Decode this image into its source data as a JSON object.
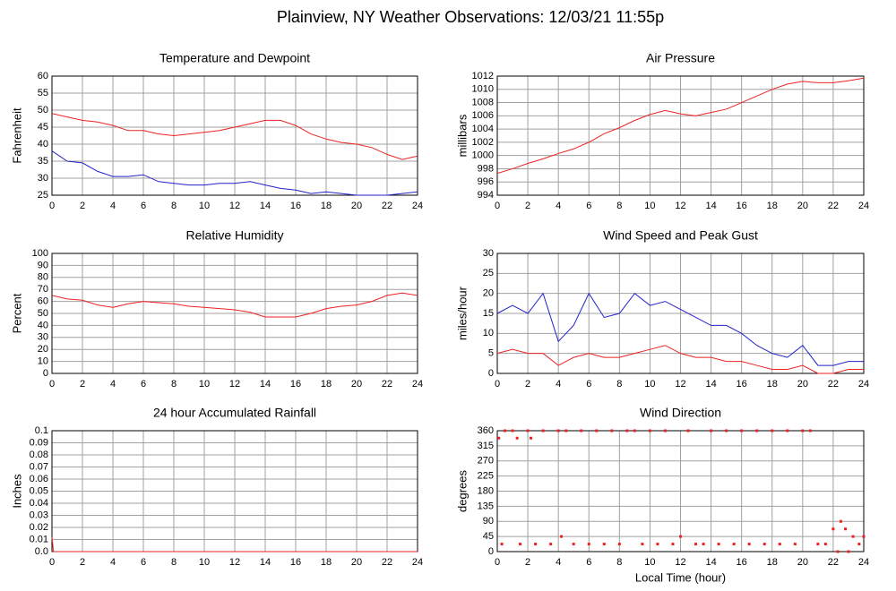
{
  "title": "Plainview, NY Weather Observations: 12/03/21 11:55p",
  "chart_data": [
    {
      "type": "line",
      "title": "Temperature and Dewpoint",
      "ylabel": "Fahrenheit",
      "x": [
        0,
        1,
        2,
        3,
        4,
        5,
        6,
        7,
        8,
        9,
        10,
        11,
        12,
        13,
        14,
        15,
        16,
        17,
        18,
        19,
        20,
        21,
        22,
        23,
        24
      ],
      "series": [
        {
          "name": "Temperature",
          "color": "#ee2222",
          "values": [
            49,
            48,
            47,
            46.5,
            45.5,
            44,
            44,
            43,
            42.5,
            43,
            43.5,
            44,
            45,
            46,
            47,
            47,
            45.5,
            43,
            41.5,
            40.5,
            40,
            39,
            37,
            35.5,
            36.5
          ]
        },
        {
          "name": "Dewpoint",
          "color": "#2222cc",
          "values": [
            38,
            35,
            34.5,
            32,
            30.5,
            30.5,
            31,
            29,
            28.5,
            28,
            28,
            28.5,
            28.5,
            29,
            28,
            27,
            26.5,
            25.5,
            26,
            25.5,
            25,
            25,
            25,
            25.5,
            26
          ]
        }
      ],
      "xlim": [
        0,
        24
      ],
      "xticks": [
        0,
        2,
        4,
        6,
        8,
        10,
        12,
        14,
        16,
        18,
        20,
        22,
        24
      ],
      "ylim": [
        25,
        60
      ],
      "yticks": [
        25,
        30,
        35,
        40,
        45,
        50,
        55,
        60
      ],
      "grid": true
    },
    {
      "type": "line",
      "title": "Air Pressure",
      "ylabel": "millibars",
      "x": [
        0,
        1,
        2,
        3,
        4,
        5,
        6,
        7,
        8,
        9,
        10,
        11,
        12,
        13,
        14,
        15,
        16,
        17,
        18,
        19,
        20,
        21,
        22,
        23,
        24
      ],
      "series": [
        {
          "name": "Pressure",
          "color": "#ee2222",
          "values": [
            997.3,
            998,
            998.8,
            999.5,
            1000.3,
            1001,
            1002,
            1003.3,
            1004.2,
            1005.3,
            1006.2,
            1006.8,
            1006.3,
            1006,
            1006.5,
            1007,
            1008,
            1009,
            1010,
            1010.8,
            1011.2,
            1011,
            1011,
            1011.3,
            1011.7
          ]
        }
      ],
      "xlim": [
        0,
        24
      ],
      "xticks": [
        0,
        2,
        4,
        6,
        8,
        10,
        12,
        14,
        16,
        18,
        20,
        22,
        24
      ],
      "ylim": [
        994,
        1012
      ],
      "yticks": [
        994,
        996,
        998,
        1000,
        1002,
        1004,
        1006,
        1008,
        1010,
        1012
      ],
      "grid": true
    },
    {
      "type": "line",
      "title": "Relative Humidity",
      "ylabel": "Percent",
      "x": [
        0,
        1,
        2,
        3,
        4,
        5,
        6,
        7,
        8,
        9,
        10,
        11,
        12,
        13,
        14,
        15,
        16,
        17,
        18,
        19,
        20,
        21,
        22,
        23,
        24
      ],
      "series": [
        {
          "name": "Humidity",
          "color": "#ee2222",
          "values": [
            65,
            62,
            61,
            57,
            55,
            58,
            60,
            59,
            58,
            56,
            55,
            54,
            53,
            51,
            47,
            47,
            47,
            50,
            54,
            56,
            57,
            60,
            65,
            67,
            65
          ]
        }
      ],
      "xlim": [
        0,
        24
      ],
      "xticks": [
        0,
        2,
        4,
        6,
        8,
        10,
        12,
        14,
        16,
        18,
        20,
        22,
        24
      ],
      "ylim": [
        0,
        100
      ],
      "yticks": [
        0,
        10,
        20,
        30,
        40,
        50,
        60,
        70,
        80,
        90,
        100
      ],
      "grid": true
    },
    {
      "type": "line",
      "title": "Wind Speed and Peak Gust",
      "ylabel": "miles/hour",
      "x": [
        0,
        1,
        2,
        3,
        4,
        5,
        6,
        7,
        8,
        9,
        10,
        11,
        12,
        13,
        14,
        15,
        16,
        17,
        18,
        19,
        20,
        21,
        22,
        23,
        24
      ],
      "series": [
        {
          "name": "Peak Gust",
          "color": "#2222cc",
          "values": [
            15,
            17,
            15,
            20,
            8,
            12,
            20,
            14,
            15,
            20,
            17,
            18,
            16,
            14,
            12,
            12,
            10,
            7,
            5,
            4,
            7,
            2,
            2,
            3,
            3
          ]
        },
        {
          "name": "Wind Speed",
          "color": "#ee2222",
          "values": [
            5,
            6,
            5,
            5,
            2,
            4,
            5,
            4,
            4,
            5,
            6,
            7,
            5,
            4,
            4,
            3,
            3,
            2,
            1,
            1,
            2,
            0,
            0,
            1,
            1
          ]
        }
      ],
      "xlim": [
        0,
        24
      ],
      "xticks": [
        0,
        2,
        4,
        6,
        8,
        10,
        12,
        14,
        16,
        18,
        20,
        22,
        24
      ],
      "ylim": [
        0,
        30
      ],
      "yticks": [
        0,
        5,
        10,
        15,
        20,
        25,
        30
      ],
      "grid": true
    },
    {
      "type": "line",
      "title": "24 hour Accumulated Rainfall",
      "ylabel": "Inches",
      "x": [
        0,
        0.1,
        24
      ],
      "series": [
        {
          "name": "Rainfall",
          "color": "#ee2222",
          "values": [
            0.012,
            0,
            0
          ]
        }
      ],
      "xlim": [
        0,
        24
      ],
      "xticks": [
        0,
        2,
        4,
        6,
        8,
        10,
        12,
        14,
        16,
        18,
        20,
        22,
        24
      ],
      "ylim": [
        0,
        0.1
      ],
      "yticks": [
        {
          "value": 0,
          "label": "0.0"
        },
        0.01,
        0.02,
        0.03,
        0.04,
        0.05,
        0.06,
        0.07,
        0.08,
        0.09,
        0.1
      ],
      "grid": true
    },
    {
      "type": "scatter",
      "title": "Wind Direction",
      "ylabel": "degrees",
      "xlabel": "Local Time (hour)",
      "x": [
        0.1,
        0.3,
        0.5,
        1,
        1.3,
        1.5,
        2,
        2.2,
        2.5,
        3,
        3.5,
        4,
        4.2,
        4.5,
        5,
        5.5,
        6,
        6.5,
        7,
        7.5,
        8,
        8.5,
        9,
        9.5,
        10,
        10.5,
        11,
        11.5,
        12,
        12.5,
        13,
        13.5,
        14,
        14.5,
        15,
        15.5,
        16,
        16.5,
        17,
        17.5,
        18,
        18.5,
        19,
        19.5,
        20,
        20.5,
        21,
        21.5,
        22,
        22.3,
        22.5,
        22.8,
        23,
        23.3,
        23.7,
        24
      ],
      "series": [
        {
          "name": "Direction",
          "color": "#ee2222",
          "values": [
            338,
            22.5,
            360,
            360,
            338,
            22.5,
            360,
            338,
            22.5,
            360,
            22.5,
            360,
            45,
            360,
            22.5,
            360,
            22.5,
            360,
            22.5,
            360,
            22.5,
            360,
            360,
            22.5,
            360,
            22.5,
            360,
            22.5,
            45,
            360,
            22.5,
            22.5,
            360,
            22.5,
            360,
            22.5,
            360,
            22.5,
            360,
            22.5,
            360,
            22.5,
            360,
            22.5,
            360,
            360,
            22.5,
            22.5,
            67.5,
            0,
            90,
            67.5,
            0,
            45,
            22.5,
            45
          ]
        }
      ],
      "xlim": [
        0,
        24
      ],
      "xticks": [
        0,
        2,
        4,
        6,
        8,
        10,
        12,
        14,
        16,
        18,
        20,
        22,
        24
      ],
      "ylim": [
        0,
        360
      ],
      "yticks": [
        0,
        45,
        90,
        135,
        180,
        225,
        270,
        315,
        360
      ],
      "grid": true
    }
  ]
}
